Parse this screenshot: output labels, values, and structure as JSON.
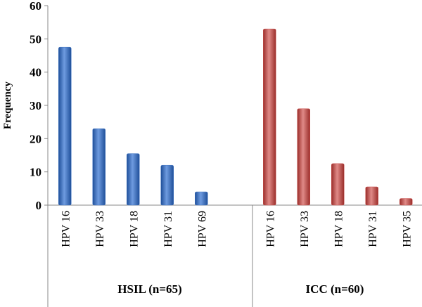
{
  "chart_data": {
    "type": "bar",
    "ylabel": "Frequency",
    "xlabel": "",
    "title": "",
    "ylim": [
      0,
      60
    ],
    "yticks": [
      0,
      10,
      20,
      30,
      40,
      50,
      60
    ],
    "grid": false,
    "legend": "none",
    "groups": [
      {
        "label": "HSIL (n=65)",
        "color": "#3d72c0",
        "categories": [
          "HPV 16",
          "HPV 33",
          "HPV 18",
          "HPV 31",
          "HPV 69"
        ],
        "values": [
          47.5,
          23,
          15.5,
          12,
          4
        ]
      },
      {
        "label": "ICC (n=60)",
        "color": "#c9514e",
        "categories": [
          "HPV 16",
          "HPV 33",
          "HPV 18",
          "HPV 31",
          "HPV 35"
        ],
        "values": [
          53,
          29,
          12.5,
          5.5,
          2
        ]
      }
    ]
  }
}
